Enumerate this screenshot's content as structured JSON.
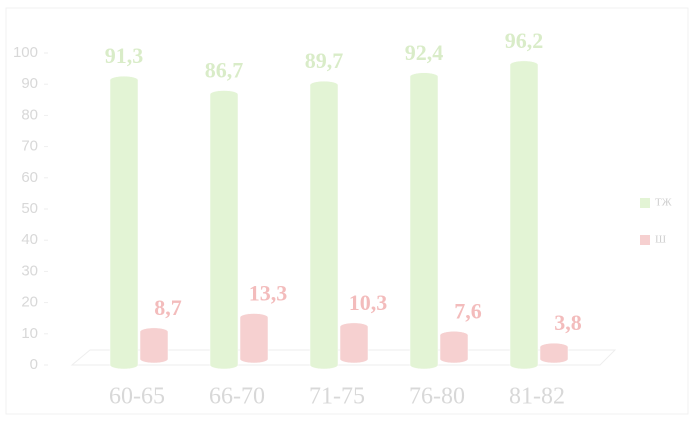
{
  "chart_data": {
    "type": "bar",
    "categories": [
      "60-65",
      "66-70",
      "71-75",
      "76-80",
      "81-82"
    ],
    "series": [
      {
        "name": "ТЖ",
        "color": "#e3f4d5",
        "values": [
          91.3,
          86.7,
          89.7,
          92.4,
          96.2
        ],
        "value_labels": [
          "91,3",
          "86,7",
          "89,7",
          "92,4",
          "96,2"
        ]
      },
      {
        "name": "Ш",
        "color": "#f6d0d0",
        "values": [
          8.7,
          13.3,
          10.3,
          7.6,
          3.8
        ],
        "value_labels": [
          "8,7",
          "13,3",
          "10,3",
          "7,6",
          "3,8"
        ]
      }
    ],
    "ylim": [
      0,
      100
    ],
    "yticks": [
      0,
      10,
      20,
      30,
      40,
      50,
      60,
      70,
      80,
      90,
      100
    ]
  }
}
